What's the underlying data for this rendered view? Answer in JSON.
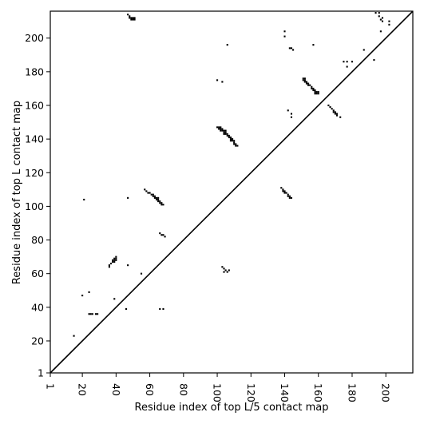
{
  "chart_data": {
    "type": "heatmap",
    "title": "",
    "xlabel": "Residue index of top L/5 contact map",
    "ylabel": "Residue index of top L contact map",
    "xlim": [
      1,
      216
    ],
    "ylim": [
      1,
      216
    ],
    "x_ticks": [
      1,
      20,
      40,
      60,
      80,
      100,
      120,
      140,
      160,
      180,
      200
    ],
    "y_ticks": [
      1,
      20,
      40,
      60,
      80,
      100,
      120,
      140,
      160,
      180,
      200
    ],
    "diagonal_line": true,
    "grid": false,
    "legend": "none",
    "mark_color": "#000000",
    "upper_left_points": [
      [
        47,
        214
      ],
      [
        48,
        213
      ],
      [
        49,
        212
      ],
      [
        50,
        212
      ],
      [
        50,
        211
      ],
      [
        49,
        211
      ],
      [
        48,
        212
      ],
      [
        51,
        211
      ],
      [
        51,
        212
      ],
      [
        106,
        196
      ],
      [
        21,
        104
      ],
      [
        47,
        105
      ],
      [
        57,
        110
      ],
      [
        58,
        109
      ],
      [
        59,
        108
      ],
      [
        60,
        108
      ],
      [
        61,
        107
      ],
      [
        62,
        107
      ],
      [
        62,
        106
      ],
      [
        63,
        106
      ],
      [
        63,
        105
      ],
      [
        64,
        105
      ],
      [
        65,
        105
      ],
      [
        64,
        104
      ],
      [
        65,
        104
      ],
      [
        65,
        103
      ],
      [
        66,
        103
      ],
      [
        66,
        102
      ],
      [
        67,
        102
      ],
      [
        67,
        101
      ],
      [
        68,
        101
      ],
      [
        66,
        84
      ],
      [
        67,
        83
      ],
      [
        68,
        83
      ],
      [
        69,
        82
      ],
      [
        47,
        65
      ],
      [
        36,
        64
      ],
      [
        36,
        65
      ],
      [
        37,
        66
      ],
      [
        38,
        67
      ],
      [
        39,
        67
      ],
      [
        38,
        68
      ],
      [
        39,
        68
      ],
      [
        39,
        69
      ],
      [
        40,
        69
      ],
      [
        40,
        70
      ],
      [
        40,
        68
      ],
      [
        55,
        60
      ],
      [
        20,
        47
      ],
      [
        24,
        49
      ],
      [
        39,
        45
      ],
      [
        46,
        39
      ],
      [
        66,
        39
      ],
      [
        68,
        39
      ],
      [
        24,
        36
      ],
      [
        25,
        36
      ],
      [
        26,
        36
      ],
      [
        28,
        36
      ],
      [
        29,
        36
      ],
      [
        15,
        23
      ]
    ],
    "lower_right_points": [
      [
        140,
        204
      ],
      [
        140,
        201
      ],
      [
        143,
        194
      ],
      [
        144,
        194
      ],
      [
        145,
        193
      ],
      [
        157,
        196
      ],
      [
        175,
        186
      ],
      [
        177,
        186
      ],
      [
        180,
        186
      ],
      [
        177,
        183
      ],
      [
        187,
        193
      ],
      [
        193,
        187
      ],
      [
        194,
        215
      ],
      [
        196,
        215
      ],
      [
        196,
        213
      ],
      [
        197,
        211
      ],
      [
        198,
        212
      ],
      [
        198,
        210
      ],
      [
        202,
        210
      ],
      [
        202,
        208
      ],
      [
        197,
        204
      ],
      [
        151,
        176
      ],
      [
        152,
        176
      ],
      [
        152,
        175
      ],
      [
        151,
        175
      ],
      [
        152,
        174
      ],
      [
        153,
        174
      ],
      [
        153,
        173
      ],
      [
        154,
        173
      ],
      [
        154,
        172
      ],
      [
        155,
        172
      ],
      [
        156,
        171
      ],
      [
        156,
        170
      ],
      [
        157,
        170
      ],
      [
        157,
        169
      ],
      [
        158,
        169
      ],
      [
        158,
        168
      ],
      [
        159,
        168
      ],
      [
        159,
        167
      ],
      [
        160,
        167
      ],
      [
        160,
        168
      ],
      [
        158,
        167
      ],
      [
        100,
        175
      ],
      [
        103,
        174
      ],
      [
        166,
        160
      ],
      [
        167,
        159
      ],
      [
        168,
        158
      ],
      [
        169,
        157
      ],
      [
        169,
        156
      ],
      [
        170,
        156
      ],
      [
        170,
        155
      ],
      [
        171,
        155
      ],
      [
        171,
        154
      ],
      [
        173,
        153
      ],
      [
        142,
        157
      ],
      [
        144,
        155
      ],
      [
        144,
        153
      ],
      [
        100,
        147
      ],
      [
        101,
        147
      ],
      [
        102,
        147
      ],
      [
        101,
        146
      ],
      [
        102,
        146
      ],
      [
        103,
        146
      ],
      [
        102,
        145
      ],
      [
        103,
        145
      ],
      [
        104,
        145
      ],
      [
        105,
        145
      ],
      [
        104,
        144
      ],
      [
        105,
        144
      ],
      [
        104,
        143
      ],
      [
        105,
        143
      ],
      [
        106,
        143
      ],
      [
        106,
        142
      ],
      [
        107,
        142
      ],
      [
        107,
        141
      ],
      [
        108,
        141
      ],
      [
        108,
        140
      ],
      [
        109,
        140
      ],
      [
        108,
        139
      ],
      [
        109,
        139
      ],
      [
        110,
        139
      ],
      [
        110,
        138
      ],
      [
        110,
        137
      ],
      [
        111,
        137
      ],
      [
        111,
        136
      ],
      [
        112,
        136
      ],
      [
        138,
        111
      ],
      [
        139,
        110
      ],
      [
        139,
        109
      ],
      [
        140,
        109
      ],
      [
        140,
        108
      ],
      [
        141,
        108
      ],
      [
        142,
        107
      ],
      [
        142,
        106
      ],
      [
        143,
        106
      ],
      [
        143,
        105
      ],
      [
        144,
        105
      ],
      [
        103,
        64
      ],
      [
        104,
        63
      ],
      [
        105,
        62
      ],
      [
        104,
        61
      ],
      [
        106,
        61
      ],
      [
        107,
        62
      ]
    ]
  }
}
